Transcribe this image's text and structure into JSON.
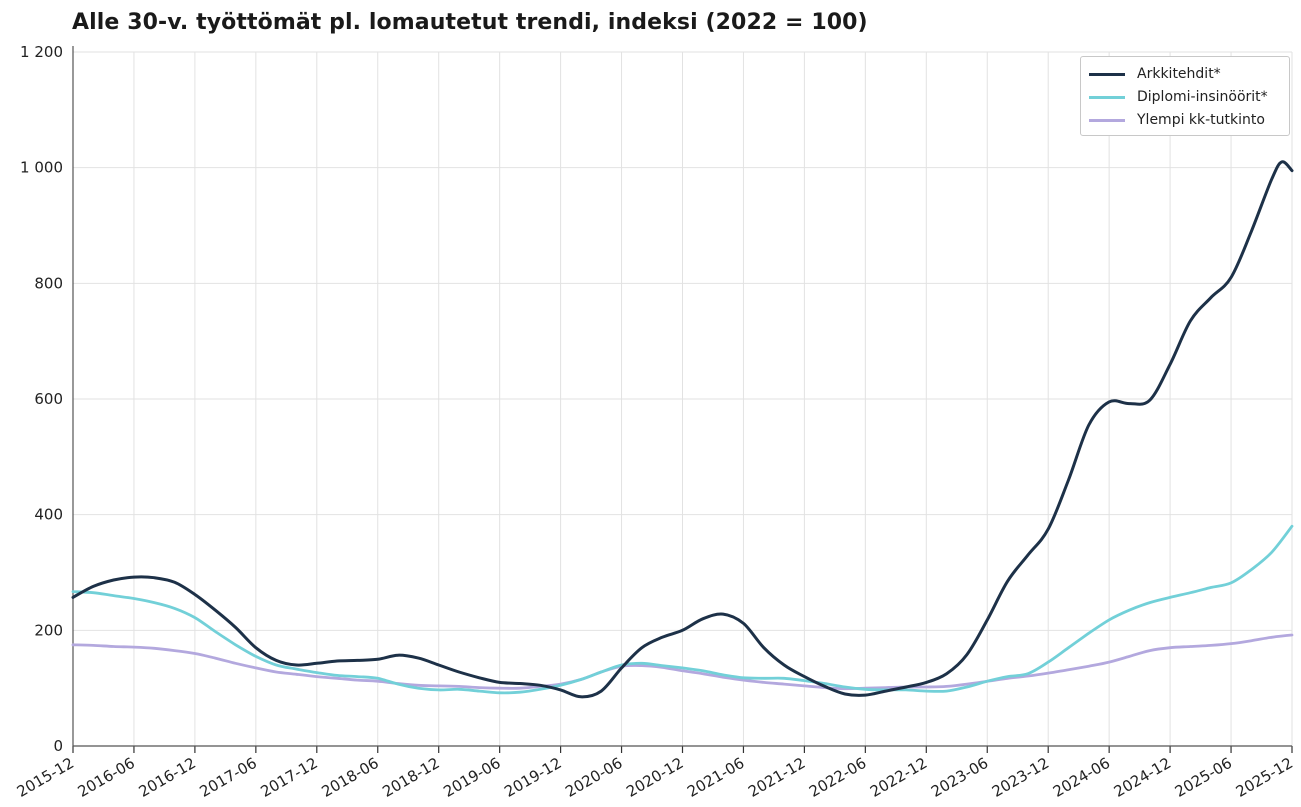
{
  "title": "Alle 30-v. työttömät pl. lomautetut trendi, indeksi (2022 = 100)",
  "chart_data": {
    "type": "line",
    "title": "Alle 30-v. työttömät pl. lomautetut trendi, indeksi (2022 = 100)",
    "xlabel": "",
    "ylabel": "",
    "ylim": [
      0,
      1200
    ],
    "yticks": [
      0,
      200,
      400,
      600,
      800,
      1000,
      1200
    ],
    "ytick_labels": [
      "0",
      "200",
      "400",
      "600",
      "800",
      "1 000",
      "1 200"
    ],
    "xtick_labels": [
      "2015-12",
      "2016-06",
      "2016-12",
      "2017-06",
      "2017-12",
      "2018-06",
      "2018-12",
      "2019-06",
      "2019-12",
      "2020-06",
      "2020-12",
      "2021-06",
      "2021-12",
      "2022-06",
      "2022-12",
      "2023-06",
      "2023-12",
      "2024-06",
      "2024-12",
      "2025-06",
      "2025-12"
    ],
    "x_start": "2015-12",
    "x_end": "2025-12",
    "grid": true,
    "legend_position": "top-right",
    "series": [
      {
        "name": "Arkkitehdit*",
        "color": "#1d3148",
        "points": [
          [
            "2015-12",
            257
          ],
          [
            "2016-02",
            276
          ],
          [
            "2016-04",
            287
          ],
          [
            "2016-06",
            292
          ],
          [
            "2016-08",
            291
          ],
          [
            "2016-10",
            283
          ],
          [
            "2016-12",
            262
          ],
          [
            "2017-02",
            235
          ],
          [
            "2017-04",
            205
          ],
          [
            "2017-06",
            170
          ],
          [
            "2017-08",
            148
          ],
          [
            "2017-10",
            140
          ],
          [
            "2017-12",
            143
          ],
          [
            "2018-02",
            147
          ],
          [
            "2018-04",
            148
          ],
          [
            "2018-06",
            150
          ],
          [
            "2018-08",
            157
          ],
          [
            "2018-10",
            152
          ],
          [
            "2018-12",
            140
          ],
          [
            "2019-02",
            128
          ],
          [
            "2019-04",
            118
          ],
          [
            "2019-06",
            110
          ],
          [
            "2019-08",
            108
          ],
          [
            "2019-10",
            105
          ],
          [
            "2019-12",
            97
          ],
          [
            "2020-02",
            85
          ],
          [
            "2020-04",
            95
          ],
          [
            "2020-06",
            135
          ],
          [
            "2020-08",
            170
          ],
          [
            "2020-10",
            188
          ],
          [
            "2020-12",
            200
          ],
          [
            "2021-02",
            220
          ],
          [
            "2021-04",
            228
          ],
          [
            "2021-06",
            212
          ],
          [
            "2021-08",
            170
          ],
          [
            "2021-10",
            140
          ],
          [
            "2021-12",
            120
          ],
          [
            "2022-02",
            103
          ],
          [
            "2022-04",
            90
          ],
          [
            "2022-06",
            88
          ],
          [
            "2022-08",
            95
          ],
          [
            "2022-10",
            102
          ],
          [
            "2022-12",
            110
          ],
          [
            "2023-02",
            125
          ],
          [
            "2023-04",
            158
          ],
          [
            "2023-06",
            218
          ],
          [
            "2023-08",
            285
          ],
          [
            "2023-10",
            330
          ],
          [
            "2023-12",
            375
          ],
          [
            "2024-02",
            460
          ],
          [
            "2024-04",
            555
          ],
          [
            "2024-06",
            595
          ],
          [
            "2024-08",
            592
          ],
          [
            "2024-10",
            598
          ],
          [
            "2024-12",
            660
          ],
          [
            "2025-02",
            735
          ],
          [
            "2025-04",
            775
          ],
          [
            "2025-06",
            810
          ],
          [
            "2025-08",
            890
          ],
          [
            "2025-10",
            980
          ],
          [
            "2025-11",
            1010
          ],
          [
            "2025-12",
            995
          ]
        ]
      },
      {
        "name": "Diplomi-insinöörit*",
        "color": "#72d0d8",
        "points": [
          [
            "2015-12",
            267
          ],
          [
            "2016-02",
            265
          ],
          [
            "2016-04",
            260
          ],
          [
            "2016-06",
            255
          ],
          [
            "2016-08",
            248
          ],
          [
            "2016-10",
            238
          ],
          [
            "2016-12",
            222
          ],
          [
            "2017-02",
            198
          ],
          [
            "2017-04",
            175
          ],
          [
            "2017-06",
            155
          ],
          [
            "2017-08",
            140
          ],
          [
            "2017-10",
            133
          ],
          [
            "2017-12",
            127
          ],
          [
            "2018-02",
            122
          ],
          [
            "2018-04",
            120
          ],
          [
            "2018-06",
            117
          ],
          [
            "2018-08",
            107
          ],
          [
            "2018-10",
            100
          ],
          [
            "2018-12",
            97
          ],
          [
            "2019-02",
            98
          ],
          [
            "2019-04",
            95
          ],
          [
            "2019-06",
            92
          ],
          [
            "2019-08",
            93
          ],
          [
            "2019-10",
            98
          ],
          [
            "2019-12",
            105
          ],
          [
            "2020-02",
            115
          ],
          [
            "2020-04",
            128
          ],
          [
            "2020-06",
            140
          ],
          [
            "2020-08",
            143
          ],
          [
            "2020-10",
            139
          ],
          [
            "2020-12",
            135
          ],
          [
            "2021-02",
            130
          ],
          [
            "2021-04",
            123
          ],
          [
            "2021-06",
            118
          ],
          [
            "2021-08",
            117
          ],
          [
            "2021-10",
            117
          ],
          [
            "2021-12",
            113
          ],
          [
            "2022-02",
            108
          ],
          [
            "2022-04",
            102
          ],
          [
            "2022-06",
            98
          ],
          [
            "2022-08",
            97
          ],
          [
            "2022-10",
            97
          ],
          [
            "2022-12",
            95
          ],
          [
            "2023-02",
            95
          ],
          [
            "2023-04",
            102
          ],
          [
            "2023-06",
            112
          ],
          [
            "2023-08",
            120
          ],
          [
            "2023-10",
            125
          ],
          [
            "2023-12",
            145
          ],
          [
            "2024-02",
            170
          ],
          [
            "2024-04",
            195
          ],
          [
            "2024-06",
            218
          ],
          [
            "2024-08",
            235
          ],
          [
            "2024-10",
            248
          ],
          [
            "2024-12",
            257
          ],
          [
            "2025-02",
            265
          ],
          [
            "2025-04",
            274
          ],
          [
            "2025-06",
            282
          ],
          [
            "2025-08",
            305
          ],
          [
            "2025-10",
            335
          ],
          [
            "2025-12",
            380
          ]
        ]
      },
      {
        "name": "Ylempi kk-tutkinto",
        "color": "#b3a8de",
        "points": [
          [
            "2015-12",
            175
          ],
          [
            "2016-02",
            174
          ],
          [
            "2016-04",
            172
          ],
          [
            "2016-06",
            171
          ],
          [
            "2016-08",
            169
          ],
          [
            "2016-10",
            165
          ],
          [
            "2016-12",
            160
          ],
          [
            "2017-02",
            152
          ],
          [
            "2017-04",
            143
          ],
          [
            "2017-06",
            135
          ],
          [
            "2017-08",
            128
          ],
          [
            "2017-10",
            124
          ],
          [
            "2017-12",
            120
          ],
          [
            "2018-02",
            117
          ],
          [
            "2018-04",
            114
          ],
          [
            "2018-06",
            112
          ],
          [
            "2018-08",
            108
          ],
          [
            "2018-10",
            105
          ],
          [
            "2018-12",
            104
          ],
          [
            "2019-02",
            103
          ],
          [
            "2019-04",
            101
          ],
          [
            "2019-06",
            100
          ],
          [
            "2019-08",
            100
          ],
          [
            "2019-10",
            103
          ],
          [
            "2019-12",
            107
          ],
          [
            "2020-02",
            115
          ],
          [
            "2020-04",
            128
          ],
          [
            "2020-06",
            138
          ],
          [
            "2020-08",
            139
          ],
          [
            "2020-10",
            136
          ],
          [
            "2020-12",
            130
          ],
          [
            "2021-02",
            125
          ],
          [
            "2021-04",
            119
          ],
          [
            "2021-06",
            114
          ],
          [
            "2021-08",
            110
          ],
          [
            "2021-10",
            107
          ],
          [
            "2021-12",
            104
          ],
          [
            "2022-02",
            101
          ],
          [
            "2022-04",
            99
          ],
          [
            "2022-06",
            100
          ],
          [
            "2022-08",
            101
          ],
          [
            "2022-10",
            102
          ],
          [
            "2022-12",
            102
          ],
          [
            "2023-02",
            103
          ],
          [
            "2023-04",
            107
          ],
          [
            "2023-06",
            112
          ],
          [
            "2023-08",
            117
          ],
          [
            "2023-10",
            121
          ],
          [
            "2023-12",
            126
          ],
          [
            "2024-02",
            132
          ],
          [
            "2024-04",
            138
          ],
          [
            "2024-06",
            145
          ],
          [
            "2024-08",
            155
          ],
          [
            "2024-10",
            165
          ],
          [
            "2024-12",
            170
          ],
          [
            "2025-02",
            172
          ],
          [
            "2025-04",
            174
          ],
          [
            "2025-06",
            177
          ],
          [
            "2025-08",
            182
          ],
          [
            "2025-10",
            188
          ],
          [
            "2025-12",
            192
          ]
        ]
      }
    ]
  }
}
